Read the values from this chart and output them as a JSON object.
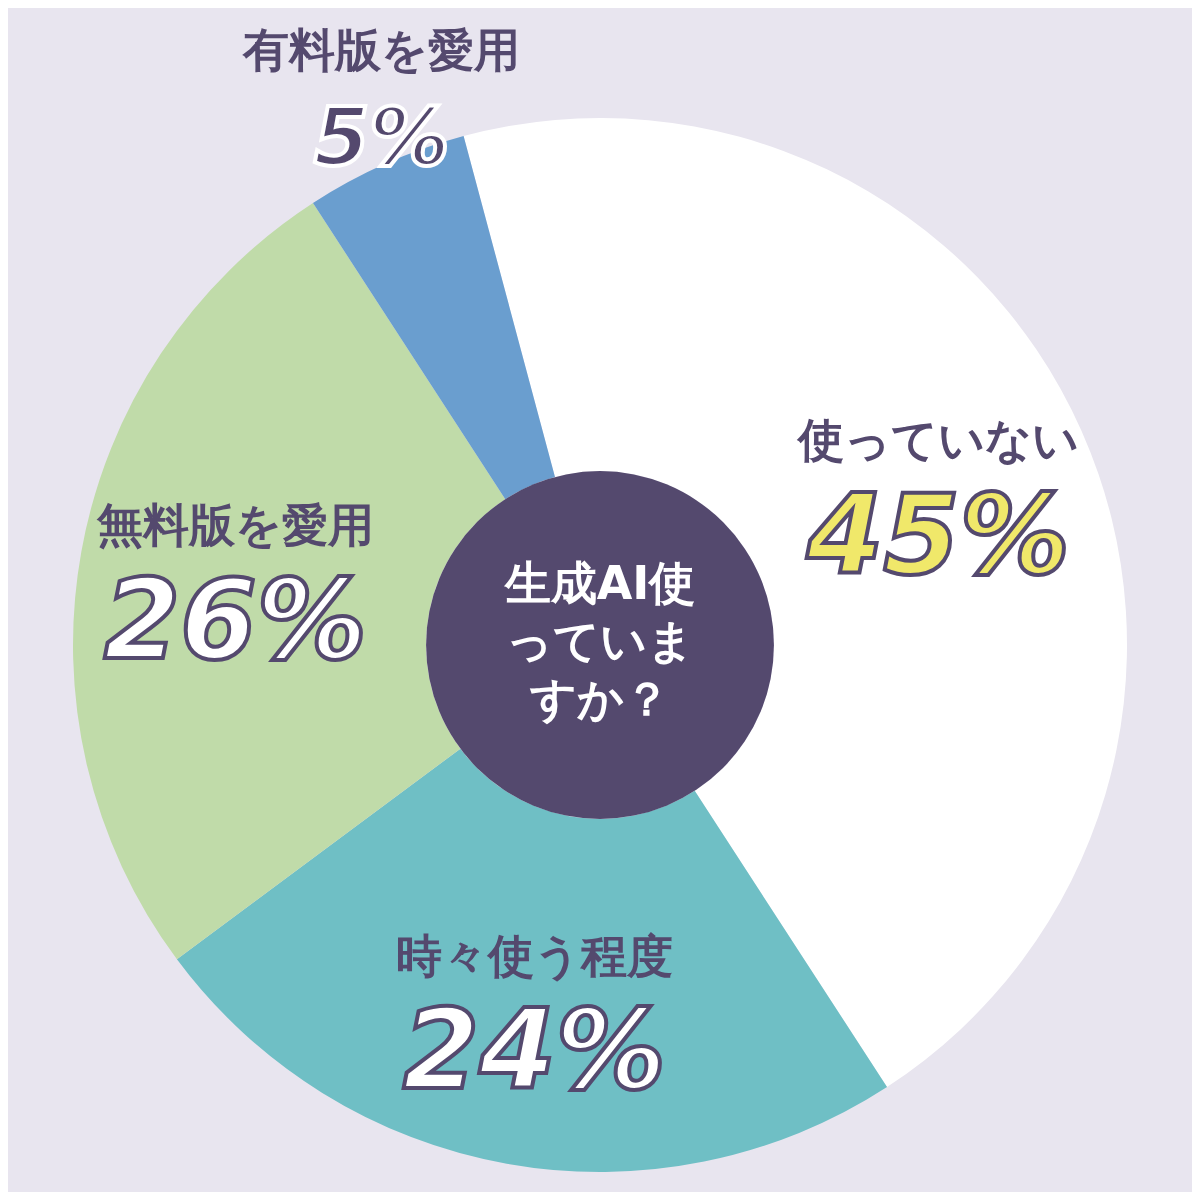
{
  "chart_data": {
    "type": "donut",
    "title": "生成AI使っていますか？",
    "categories": [
      "使っていない",
      "時々使う程度",
      "無料版を愛用",
      "有料版を愛用"
    ],
    "values": [
      45,
      24,
      26,
      5
    ],
    "value_labels": [
      "45%",
      "24%",
      "26%",
      "5%"
    ],
    "colors": [
      "#ffffff",
      "#6fbfc5",
      "#c0dba9",
      "#6a9ecf"
    ],
    "legend": false
  }
}
